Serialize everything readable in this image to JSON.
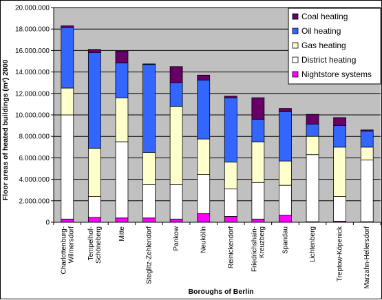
{
  "chart_data": {
    "type": "bar",
    "stacked": true,
    "xlabel": "Boroughs of Berlin",
    "ylabel": "Floor areas of heated buildings (m²) 2000",
    "ylim": [
      0,
      20000000
    ],
    "ytick_step": 2000000,
    "ytick_labels": [
      "0",
      "2.000.000",
      "4.000.000",
      "6.000.000",
      "8.000.000",
      "10.000.000",
      "12.000.000",
      "14.000.000",
      "16.000.000",
      "18.000.000",
      "20.000.000"
    ],
    "grid": true,
    "legend_position": "top-right",
    "categories": [
      "Charlottenburg-\nWilmersdorf",
      "Tempelhof-\nSchöneberg",
      "Mitte",
      "Steglitz-Zehlendorf",
      "Pankow",
      "Neukölln",
      "Reinickendorf",
      "Friedrichshain-\nKreuzberg",
      "Spandau",
      "Lichtenberg",
      "Treptow-Köpenick",
      "Marzahn-Hellersdorf"
    ],
    "series": [
      {
        "name": "Nightstore systems",
        "color": "#ff00ff",
        "values": [
          300000,
          450000,
          400000,
          400000,
          300000,
          800000,
          550000,
          300000,
          650000,
          50000,
          100000,
          50000
        ]
      },
      {
        "name": "District heating",
        "color": "#ffffff",
        "values": [
          9700000,
          1950000,
          7100000,
          3100000,
          3200000,
          3650000,
          2550000,
          3400000,
          2800000,
          6250000,
          2300000,
          5750000
        ]
      },
      {
        "name": "Gas heating",
        "color": "#ffffcc",
        "values": [
          2500000,
          4500000,
          4100000,
          3000000,
          7300000,
          3300000,
          2500000,
          3800000,
          2250000,
          1700000,
          4600000,
          1200000
        ]
      },
      {
        "name": "Oil heating",
        "color": "#3366ff",
        "values": [
          5650000,
          8900000,
          3250000,
          8200000,
          2200000,
          5500000,
          6000000,
          2100000,
          4600000,
          1150000,
          2000000,
          1500000
        ]
      },
      {
        "name": "Coal heating",
        "color": "#660066",
        "values": [
          150000,
          300000,
          1100000,
          50000,
          1500000,
          450000,
          150000,
          2000000,
          300000,
          900000,
          750000,
          100000
        ]
      }
    ],
    "plot_background": "#c0c0c0"
  }
}
